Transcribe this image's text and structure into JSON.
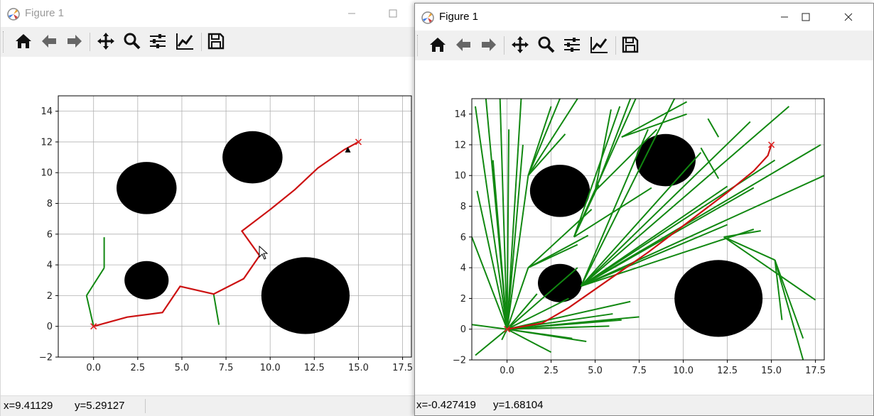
{
  "windows": [
    {
      "title": "Figure 1",
      "status": {
        "x_text": "x=9.41129",
        "y_text": "y=5.29127"
      },
      "xticks": [
        "0.0",
        "2.5",
        "5.0",
        "7.5",
        "10.0",
        "12.5",
        "15.0",
        "17.5"
      ],
      "yticks": [
        "−2",
        "0",
        "2",
        "4",
        "6",
        "8",
        "10",
        "12",
        "14"
      ]
    },
    {
      "title": "Figure 1",
      "status": {
        "x_text": "x=-0.427419",
        "y_text": "y=1.68104"
      },
      "xticks": [
        "0.0",
        "2.5",
        "5.0",
        "7.5",
        "10.0",
        "12.5",
        "15.0",
        "17.5"
      ],
      "yticks": [
        "−2",
        "0",
        "2",
        "4",
        "6",
        "8",
        "10",
        "12",
        "14"
      ]
    }
  ],
  "toolbar_icons": [
    "home-icon",
    "back-icon",
    "forward-icon",
    "pan-icon",
    "zoom-icon",
    "configure-subplots-icon",
    "edit-axis-icon",
    "save-icon"
  ],
  "colors": {
    "path": "#cc1111",
    "tree": "#118811",
    "obstacle": "#000000",
    "goal": "#dd2222"
  },
  "chart_data": [
    {
      "type": "line",
      "title": "",
      "xlabel": "",
      "ylabel": "",
      "xlim": [
        -2,
        18
      ],
      "ylim": [
        -2,
        15
      ],
      "grid": true,
      "obstacles": [
        {
          "cx": 3,
          "cy": 9,
          "r": 1.7
        },
        {
          "cx": 9,
          "cy": 11,
          "r": 1.7
        },
        {
          "cx": 3,
          "cy": 3,
          "r": 1.25
        },
        {
          "cx": 12,
          "cy": 2,
          "r": 2.5
        }
      ],
      "start": [
        0,
        0
      ],
      "goal": [
        15,
        12
      ],
      "series": [
        {
          "kind": "path",
          "x": [
            0,
            1.9,
            3.9,
            4.9,
            6.8,
            8.5,
            9.4,
            8.4,
            10.0,
            11.4,
            12.7,
            14.2,
            15.0
          ],
          "y": [
            0,
            0.6,
            0.9,
            2.6,
            2.1,
            3.1,
            4.6,
            6.2,
            7.6,
            8.9,
            10.3,
            11.5,
            12.0
          ]
        }
      ],
      "tree_segments": [
        [
          [
            0,
            0
          ],
          [
            -0.4,
            2.0
          ]
        ],
        [
          [
            -0.4,
            2.0
          ],
          [
            0.6,
            3.8
          ]
        ],
        [
          [
            0.6,
            3.8
          ],
          [
            0.6,
            5.8
          ]
        ],
        [
          [
            6.8,
            2.1
          ],
          [
            7.1,
            0.1
          ]
        ]
      ],
      "marker": [
        14.4,
        11.5
      ]
    },
    {
      "type": "line",
      "title": "",
      "xlabel": "",
      "ylabel": "",
      "xlim": [
        -2,
        18
      ],
      "ylim": [
        -2,
        15
      ],
      "grid": true,
      "obstacles": [
        {
          "cx": 3,
          "cy": 9,
          "r": 1.7
        },
        {
          "cx": 9,
          "cy": 11,
          "r": 1.7
        },
        {
          "cx": 3,
          "cy": 3,
          "r": 1.25
        },
        {
          "cx": 12,
          "cy": 2,
          "r": 2.5
        }
      ],
      "start": [
        0,
        0
      ],
      "goal": [
        15,
        12
      ],
      "series": [
        {
          "kind": "path",
          "x": [
            0,
            2.0,
            3.5,
            5.0,
            6.5,
            8.0,
            9.5,
            11.0,
            12.5,
            14.0,
            14.8,
            15.0
          ],
          "y": [
            0,
            0.4,
            1.4,
            2.6,
            3.8,
            5.0,
            6.3,
            7.6,
            8.9,
            10.3,
            11.3,
            12.0
          ]
        }
      ],
      "tree_segments": [
        [
          [
            0,
            0
          ],
          [
            -1.8,
            14.5
          ]
        ],
        [
          [
            0,
            0
          ],
          [
            -1.2,
            15
          ]
        ],
        [
          [
            0,
            0
          ],
          [
            -0.8,
            11
          ]
        ],
        [
          [
            0,
            0
          ],
          [
            -2,
            6
          ]
        ],
        [
          [
            0,
            0
          ],
          [
            -1.7,
            9
          ]
        ],
        [
          [
            0,
            0
          ],
          [
            -0.4,
            15
          ]
        ],
        [
          [
            0,
            0
          ],
          [
            0.1,
            13
          ]
        ],
        [
          [
            0,
            0
          ],
          [
            0.8,
            15
          ]
        ],
        [
          [
            0,
            0
          ],
          [
            0.9,
            12
          ]
        ],
        [
          [
            0,
            0
          ],
          [
            1.2,
            10
          ]
        ],
        [
          [
            0,
            0
          ],
          [
            -2,
            0.3
          ]
        ],
        [
          [
            0,
            0
          ],
          [
            -1.8,
            -1.7
          ]
        ],
        [
          [
            0,
            0
          ],
          [
            -0.3,
            -0.7
          ]
        ],
        [
          [
            0,
            0
          ],
          [
            1.2,
            4
          ]
        ],
        [
          [
            0,
            0
          ],
          [
            1.7,
            2.3
          ]
        ],
        [
          [
            0,
            0
          ],
          [
            2.5,
            -1.5
          ]
        ],
        [
          [
            0,
            0
          ],
          [
            3.7,
            -0.6
          ]
        ],
        [
          [
            0,
            0
          ],
          [
            4.5,
            -0.8
          ]
        ],
        [
          [
            0,
            0
          ],
          [
            5.8,
            0.2
          ]
        ],
        [
          [
            0,
            0
          ],
          [
            6.5,
            0.6
          ]
        ],
        [
          [
            0,
            0
          ],
          [
            6.0,
            1.0
          ]
        ],
        [
          [
            0,
            0
          ],
          [
            7.0,
            1.8
          ]
        ],
        [
          [
            0,
            0
          ],
          [
            7.5,
            0.8
          ]
        ],
        [
          [
            0,
            0
          ],
          [
            3.5,
            2.0
          ]
        ],
        [
          [
            0,
            0
          ],
          [
            4.0,
            4.0
          ]
        ],
        [
          [
            1.2,
            10
          ],
          [
            3.0,
            15
          ]
        ],
        [
          [
            1.2,
            10
          ],
          [
            2.5,
            14.5
          ]
        ],
        [
          [
            1.2,
            10
          ],
          [
            4.0,
            15
          ]
        ],
        [
          [
            1.2,
            10
          ],
          [
            3.3,
            12.7
          ]
        ],
        [
          [
            1.2,
            4
          ],
          [
            4.6,
            6.1
          ]
        ],
        [
          [
            1.2,
            4
          ],
          [
            4.8,
            7.8
          ]
        ],
        [
          [
            1.2,
            4
          ],
          [
            4.0,
            5.5
          ]
        ],
        [
          [
            3.8,
            6.0
          ],
          [
            5.2,
            9.4
          ]
        ],
        [
          [
            3.8,
            6.0
          ],
          [
            6.4,
            14.5
          ]
        ],
        [
          [
            3.8,
            6.0
          ],
          [
            7.3,
            15
          ]
        ],
        [
          [
            5.0,
            9.0
          ],
          [
            7.0,
            15
          ]
        ],
        [
          [
            5.0,
            9.0
          ],
          [
            8.5,
            13
          ]
        ],
        [
          [
            5.0,
            9.0
          ],
          [
            5.9,
            14.3
          ]
        ],
        [
          [
            3.8,
            6.0
          ],
          [
            8.2,
            9.2
          ]
        ],
        [
          [
            4.2,
            2.8
          ],
          [
            11.0,
            11.5
          ]
        ],
        [
          [
            4.2,
            2.8
          ],
          [
            13.8,
            13.5
          ]
        ],
        [
          [
            4.2,
            2.8
          ],
          [
            15.2,
            11.0
          ]
        ],
        [
          [
            4.2,
            2.8
          ],
          [
            12.5,
            9.3
          ]
        ],
        [
          [
            4.2,
            2.8
          ],
          [
            14.0,
            9.2
          ]
        ],
        [
          [
            4.2,
            2.8
          ],
          [
            17.8,
            12.0
          ]
        ],
        [
          [
            4.2,
            2.8
          ],
          [
            18,
            10.0
          ]
        ],
        [
          [
            4.2,
            2.8
          ],
          [
            14.0,
            6.5
          ]
        ],
        [
          [
            4.2,
            2.8
          ],
          [
            12.5,
            6.8
          ]
        ],
        [
          [
            4.2,
            2.8
          ],
          [
            9.5,
            15
          ]
        ],
        [
          [
            4.2,
            2.8
          ],
          [
            16.0,
            14.5
          ]
        ],
        [
          [
            4.2,
            2.8
          ],
          [
            8.0,
            13.0
          ]
        ],
        [
          [
            6.5,
            12.5
          ],
          [
            10.2,
            14.8
          ]
        ],
        [
          [
            6.5,
            12.5
          ],
          [
            10.2,
            14.0
          ]
        ],
        [
          [
            11.0,
            11.8
          ],
          [
            12.0,
            9.8
          ]
        ],
        [
          [
            11.4,
            13.7
          ],
          [
            12.0,
            12.5
          ]
        ],
        [
          [
            12.3,
            6.0
          ],
          [
            14.4,
            6.4
          ]
        ],
        [
          [
            12.3,
            6.0
          ],
          [
            15.2,
            4.5
          ]
        ],
        [
          [
            12.3,
            6.0
          ],
          [
            17.5,
            1.9
          ]
        ],
        [
          [
            15.2,
            4.5
          ],
          [
            16.8,
            -0.6
          ]
        ],
        [
          [
            15.2,
            4.5
          ],
          [
            15.6,
            0.6
          ]
        ],
        [
          [
            15.2,
            4.5
          ],
          [
            16.8,
            -2
          ]
        ]
      ],
      "marker": null
    }
  ]
}
